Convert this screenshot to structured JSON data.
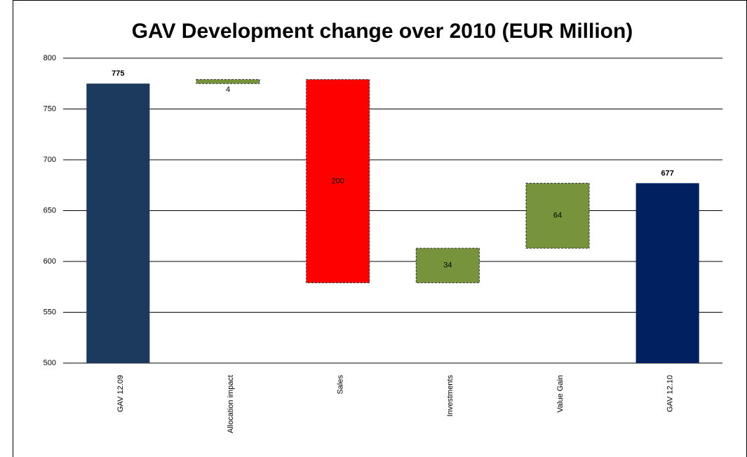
{
  "chart_data": {
    "type": "waterfall",
    "title": "GAV Development change over 2010 (EUR Million)",
    "categories": [
      "GAV 12.09",
      "Allocation impact",
      "Sales",
      "Investments",
      "Value Gain",
      "GAV 12.10"
    ],
    "values": [
      775,
      4,
      -200,
      34,
      64,
      677
    ],
    "value_labels": [
      "775",
      "4",
      "200",
      "34",
      "64",
      "677"
    ],
    "colors": [
      "#1b3a5e",
      "#77933c",
      "#ff0000",
      "#77933c",
      "#77933c",
      "#002060"
    ],
    "ylim": [
      500,
      800
    ],
    "yticks": [
      500,
      550,
      600,
      650,
      700,
      750,
      800
    ],
    "grid": true
  }
}
